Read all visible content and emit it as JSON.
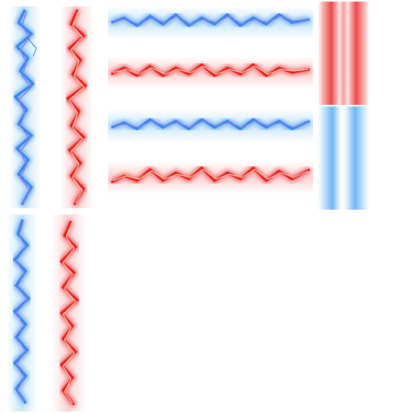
{
  "sheet": {
    "palette": {
      "blue_core": "#3a86f0",
      "blue_glow": "#9fd3f3",
      "blue_violet": "#8f7ee6",
      "red_core": "#ee2020",
      "red_glow": "#f6a7a7",
      "red_hot": "#f7c5a0",
      "background": "#ffffff"
    },
    "sprites": [
      {
        "id": "lightning-vertical-blue-large",
        "color": "blue",
        "orientation": "vertical"
      },
      {
        "id": "lightning-vertical-red-large",
        "color": "red",
        "orientation": "vertical"
      },
      {
        "id": "lightning-horizontal-blue-top",
        "color": "blue",
        "orientation": "horizontal"
      },
      {
        "id": "lightning-horizontal-red-top",
        "color": "red",
        "orientation": "horizontal"
      },
      {
        "id": "lightning-horizontal-blue-bottom",
        "color": "blue",
        "orientation": "horizontal"
      },
      {
        "id": "lightning-horizontal-red-bottom",
        "color": "red",
        "orientation": "horizontal"
      },
      {
        "id": "glow-beam-red",
        "color": "red",
        "orientation": "vertical"
      },
      {
        "id": "glow-beam-blue",
        "color": "blue",
        "orientation": "vertical"
      },
      {
        "id": "lightning-vertical-blue-small",
        "color": "blue",
        "orientation": "vertical"
      },
      {
        "id": "lightning-vertical-red-small",
        "color": "red",
        "orientation": "vertical"
      }
    ]
  }
}
